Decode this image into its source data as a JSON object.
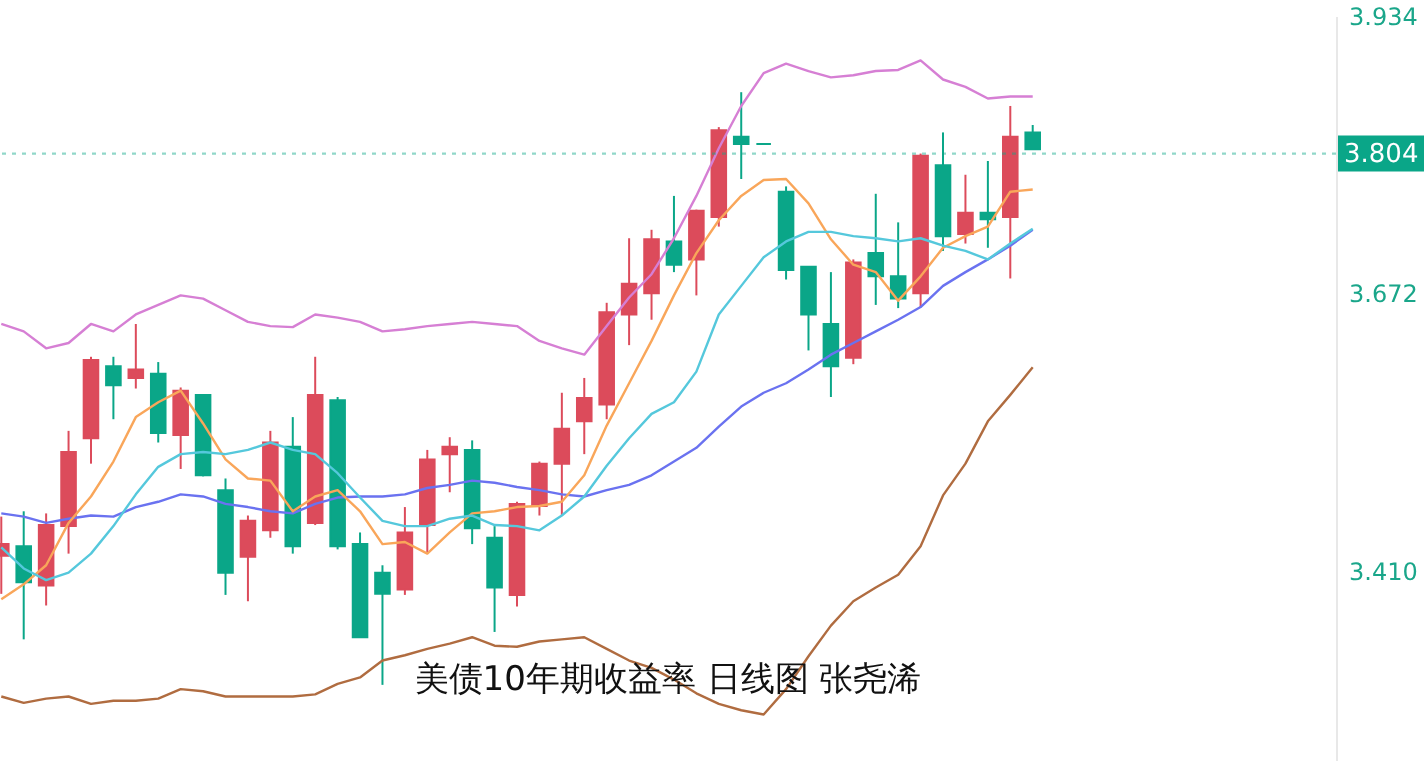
{
  "chart_data": {
    "type": "candlestick",
    "title": "美债10年期收益率  日线图  张尧浠",
    "categories": [
      null,
      null,
      null,
      null,
      null,
      null,
      null,
      null,
      null,
      null,
      null,
      null,
      null,
      null,
      null,
      null,
      null,
      null,
      null,
      null,
      null,
      null,
      null,
      null,
      null,
      null,
      null,
      null,
      null,
      null,
      null,
      null,
      null,
      null,
      null,
      null,
      null,
      null,
      null,
      null,
      null,
      null,
      null,
      null,
      null,
      null,
      null
    ],
    "ohlc": [
      [
        3.424,
        3.461,
        3.388,
        3.435
      ],
      [
        3.433,
        3.466,
        3.345,
        3.399
      ],
      [
        3.396,
        3.464,
        3.377,
        3.453
      ],
      [
        3.452,
        3.542,
        3.426,
        3.522
      ],
      [
        3.535,
        3.612,
        3.511,
        3.609
      ],
      [
        3.603,
        3.612,
        3.553,
        3.585
      ],
      [
        3.592,
        3.643,
        3.582,
        3.6
      ],
      [
        3.596,
        3.607,
        3.531,
        3.54
      ],
      [
        3.538,
        3.583,
        3.506,
        3.58
      ],
      [
        3.576,
        3.576,
        3.499,
        3.5
      ],
      [
        3.486,
        3.497,
        3.387,
        3.408
      ],
      [
        3.423,
        3.462,
        3.381,
        3.457
      ],
      [
        3.448,
        3.542,
        3.441,
        3.531
      ],
      [
        3.527,
        3.555,
        3.426,
        3.433
      ],
      [
        3.455,
        3.612,
        3.453,
        3.576
      ],
      [
        3.571,
        3.574,
        3.43,
        3.433
      ],
      [
        3.435,
        3.446,
        3.347,
        3.347
      ],
      [
        3.408,
        3.415,
        3.302,
        3.388
      ],
      [
        3.392,
        3.47,
        3.387,
        3.446
      ],
      [
        3.453,
        3.524,
        3.426,
        3.515
      ],
      [
        3.52,
        3.536,
        3.484,
        3.527
      ],
      [
        3.524,
        3.533,
        3.435,
        3.45
      ],
      [
        3.441,
        3.452,
        3.352,
        3.394
      ],
      [
        3.387,
        3.475,
        3.376,
        3.473
      ],
      [
        3.471,
        3.513,
        3.462,
        3.511
      ],
      [
        3.511,
        3.578,
        3.462,
        3.544
      ],
      [
        3.551,
        3.592,
        3.52,
        3.573
      ],
      [
        3.567,
        3.663,
        3.553,
        3.654
      ],
      [
        3.652,
        3.724,
        3.623,
        3.681
      ],
      [
        3.672,
        3.732,
        3.647,
        3.723
      ],
      [
        3.721,
        3.764,
        3.692,
        3.699
      ],
      [
        3.704,
        3.751,
        3.67,
        3.75
      ],
      [
        3.744,
        3.829,
        3.735,
        3.826
      ],
      [
        3.82,
        3.862,
        3.78,
        3.813
      ],
      [
        3.813,
        3.813,
        3.813,
        3.813
      ],
      [
        3.768,
        3.773,
        3.685,
        3.694
      ],
      [
        3.697,
        3.697,
        3.618,
        3.652
      ],
      [
        3.643,
        3.692,
        3.574,
        3.603
      ],
      [
        3.611,
        3.704,
        3.605,
        3.701
      ],
      [
        3.71,
        3.766,
        3.661,
        3.688
      ],
      [
        3.688,
        3.739,
        3.658,
        3.667
      ],
      [
        3.672,
        3.804,
        3.659,
        3.802
      ],
      [
        3.793,
        3.824,
        3.712,
        3.726
      ],
      [
        3.728,
        3.784,
        3.719,
        3.748
      ],
      [
        3.748,
        3.797,
        3.715,
        3.742
      ],
      [
        3.744,
        3.849,
        3.686,
        3.82
      ],
      [
        3.824,
        3.831,
        3.808,
        3.808
      ]
    ],
    "colors": [
      "#dc4b5b",
      "#0aa688",
      "#dc4b5b",
      "#dc4b5b",
      "#dc4b5b",
      "#0aa688",
      "#dc4b5b",
      "#0aa688",
      "#dc4b5b",
      "#0aa688",
      "#0aa688",
      "#dc4b5b",
      "#dc4b5b",
      "#0aa688",
      "#dc4b5b",
      "#0aa688",
      "#0aa688",
      "#0aa688",
      "#dc4b5b",
      "#dc4b5b",
      "#dc4b5b",
      "#0aa688",
      "#0aa688",
      "#dc4b5b",
      "#dc4b5b",
      "#dc4b5b",
      "#dc4b5b",
      "#dc4b5b",
      "#dc4b5b",
      "#dc4b5b",
      "#0aa688",
      "#dc4b5b",
      "#dc4b5b",
      "#0aa688",
      "#0aa688",
      "#0aa688",
      "#0aa688",
      "#0aa688",
      "#dc4b5b",
      "#0aa688",
      "#0aa688",
      "#dc4b5b",
      "#0aa688",
      "#dc4b5b",
      "#0aa688",
      "#dc4b5b",
      "#0aa688"
    ],
    "series": [
      {
        "type": "line",
        "color": "#d67fd4",
        "values": [
          3.643,
          3.636,
          3.62,
          3.625,
          3.643,
          3.636,
          3.652,
          3.661,
          3.67,
          3.667,
          3.656,
          3.645,
          3.641,
          3.64,
          3.652,
          3.649,
          3.645,
          3.636,
          3.638,
          3.641,
          3.643,
          3.645,
          3.643,
          3.641,
          3.627,
          3.62,
          3.614,
          3.641,
          3.668,
          3.69,
          3.724,
          3.764,
          3.809,
          3.849,
          3.88,
          3.889,
          3.882,
          3.876,
          3.878,
          3.882,
          3.883,
          3.892,
          3.874,
          3.867,
          3.856,
          3.858,
          3.858
        ]
      },
      {
        "type": "line",
        "color": "#b06c40",
        "values": [
          3.291,
          3.285,
          3.289,
          3.291,
          3.284,
          3.287,
          3.287,
          3.289,
          3.298,
          3.296,
          3.291,
          3.291,
          3.291,
          3.291,
          3.293,
          3.303,
          3.309,
          3.325,
          3.33,
          3.336,
          3.341,
          3.347,
          3.339,
          3.338,
          3.343,
          3.345,
          3.347,
          3.336,
          3.325,
          3.318,
          3.307,
          3.294,
          3.284,
          3.278,
          3.274,
          3.298,
          3.329,
          3.358,
          3.381,
          3.394,
          3.406,
          3.433,
          3.481,
          3.511,
          3.551,
          3.576,
          3.602
        ]
      },
      {
        "type": "line",
        "color": "#6a72f0",
        "values": [
          3.464,
          3.461,
          3.455,
          3.459,
          3.462,
          3.461,
          3.47,
          3.475,
          3.482,
          3.48,
          3.473,
          3.47,
          3.466,
          3.464,
          3.473,
          3.479,
          3.48,
          3.48,
          3.482,
          3.488,
          3.491,
          3.495,
          3.493,
          3.489,
          3.486,
          3.482,
          3.48,
          3.486,
          3.491,
          3.5,
          3.513,
          3.526,
          3.546,
          3.565,
          3.578,
          3.587,
          3.6,
          3.614,
          3.625,
          3.636,
          3.647,
          3.659,
          3.679,
          3.692,
          3.704,
          3.717,
          3.732
        ]
      },
      {
        "type": "line",
        "color": "#f9a65a",
        "values": [
          3.383,
          3.397,
          3.415,
          3.455,
          3.48,
          3.513,
          3.555,
          3.569,
          3.58,
          3.549,
          3.515,
          3.497,
          3.495,
          3.466,
          3.48,
          3.486,
          3.466,
          3.435,
          3.437,
          3.426,
          3.446,
          3.464,
          3.466,
          3.47,
          3.471,
          3.475,
          3.5,
          3.547,
          3.587,
          3.627,
          3.67,
          3.71,
          3.741,
          3.764,
          3.779,
          3.78,
          3.757,
          3.723,
          3.699,
          3.692,
          3.665,
          3.688,
          3.715,
          3.726,
          3.735,
          3.768,
          3.77
        ]
      },
      {
        "type": "line",
        "color": "#55c8dc",
        "values": [
          3.432,
          3.412,
          3.401,
          3.408,
          3.426,
          3.452,
          3.482,
          3.508,
          3.52,
          3.522,
          3.52,
          3.524,
          3.531,
          3.524,
          3.52,
          3.502,
          3.479,
          3.457,
          3.452,
          3.452,
          3.459,
          3.462,
          3.453,
          3.452,
          3.448,
          3.462,
          3.48,
          3.509,
          3.535,
          3.558,
          3.569,
          3.598,
          3.652,
          3.679,
          3.706,
          3.721,
          3.73,
          3.73,
          3.726,
          3.724,
          3.721,
          3.724,
          3.717,
          3.712,
          3.704,
          3.719,
          3.733
        ]
      }
    ],
    "ylim": [
      3.231,
      3.934
    ],
    "yticks": [
      {
        "value": 3.41,
        "label": "3.410"
      },
      {
        "value": 3.672,
        "label": "3.672"
      },
      {
        "value": 3.934,
        "label": "3.934"
      }
    ],
    "ref_lines": [
      {
        "axis": "y",
        "value": 3.804,
        "label": "3.804",
        "color": "#0aa688",
        "line_style": "dotted"
      }
    ],
    "tick_labels": "y",
    "marker": "none",
    "line_style": "solid"
  }
}
